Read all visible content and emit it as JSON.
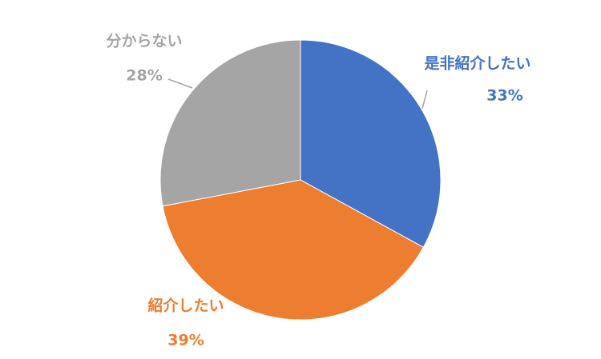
{
  "chart_data": {
    "type": "pie",
    "categories": [
      "是非紹介したい",
      "紹介したい",
      "分からない"
    ],
    "values": [
      33,
      39,
      28
    ],
    "value_labels": [
      "33%",
      "39%",
      "28%"
    ],
    "colors": [
      "#4472c4",
      "#ed7d31",
      "#a5a5a5"
    ]
  }
}
